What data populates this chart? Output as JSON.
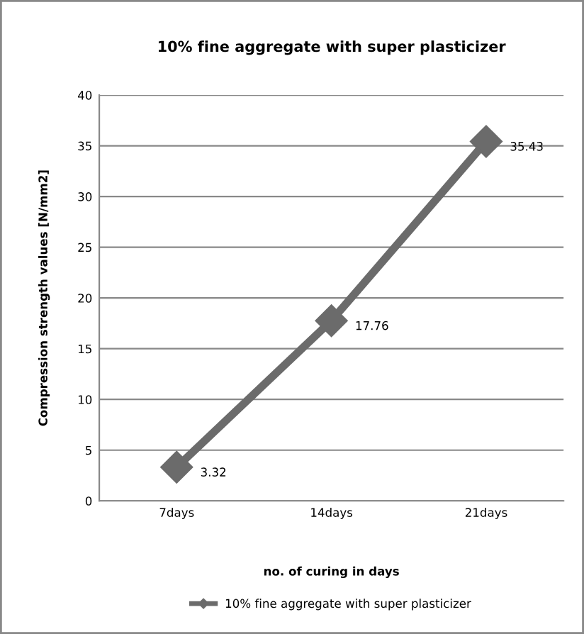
{
  "chart_data": {
    "type": "line",
    "title": "10% fine aggregate with super plasticizer",
    "xlabel": "no. of curing in days",
    "ylabel": "Compression strength values [N/mm2]",
    "categories": [
      "7days",
      "14days",
      "21days"
    ],
    "series": [
      {
        "name": "10% fine aggregate with super plasticizer",
        "color": "#6b6b6b",
        "values": [
          3.32,
          17.76,
          35.43
        ]
      }
    ],
    "ylim": [
      0,
      40
    ],
    "yticks": [
      0,
      5,
      10,
      15,
      20,
      25,
      30,
      35,
      40
    ],
    "grid": "y",
    "legend": "bottom",
    "marker": "diamond",
    "line_style": "solid",
    "data_labels": true
  }
}
